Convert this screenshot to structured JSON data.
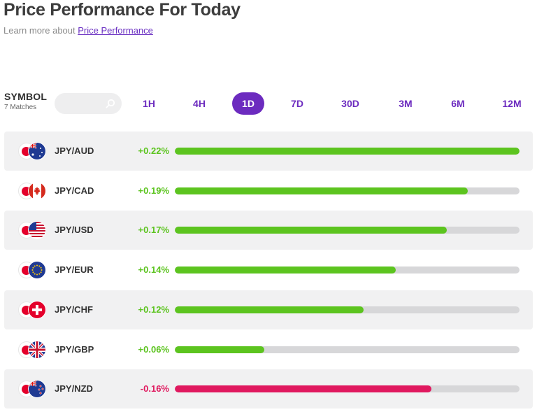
{
  "header": {
    "title": "Price Performance For Today",
    "subtitle_prefix": "Learn more about ",
    "subtitle_link": "Price Performance"
  },
  "filter": {
    "symbol_label": "SYMBOL",
    "matches": "7 Matches",
    "search_placeholder": "",
    "tabs": [
      "1H",
      "4H",
      "1D",
      "7D",
      "30D",
      "3M",
      "6M",
      "12M"
    ],
    "active_tab": "1D"
  },
  "colors": {
    "accent": "#6c2bbf",
    "positive": "#5cc41f",
    "negative": "#e0195f",
    "track": "#d7d7d9"
  },
  "rows": [
    {
      "pair": "JPY/AUD",
      "change": "+0.22%",
      "direction": "up",
      "fill": 1.0,
      "flag": "au-flag-icon"
    },
    {
      "pair": "JPY/CAD",
      "change": "+0.19%",
      "direction": "up",
      "fill": 0.85,
      "flag": "ca-flag-icon"
    },
    {
      "pair": "JPY/USD",
      "change": "+0.17%",
      "direction": "up",
      "fill": 0.79,
      "flag": "us-flag-icon"
    },
    {
      "pair": "JPY/EUR",
      "change": "+0.14%",
      "direction": "up",
      "fill": 0.64,
      "flag": "eu-flag-icon"
    },
    {
      "pair": "JPY/CHF",
      "change": "+0.12%",
      "direction": "up",
      "fill": 0.548,
      "flag": "ch-flag-icon"
    },
    {
      "pair": "JPY/GBP",
      "change": "+0.06%",
      "direction": "up",
      "fill": 0.26,
      "flag": "gb-flag-icon"
    },
    {
      "pair": "JPY/NZD",
      "change": "-0.16%",
      "direction": "down",
      "fill": 0.745,
      "flag": "nz-flag-icon"
    }
  ]
}
